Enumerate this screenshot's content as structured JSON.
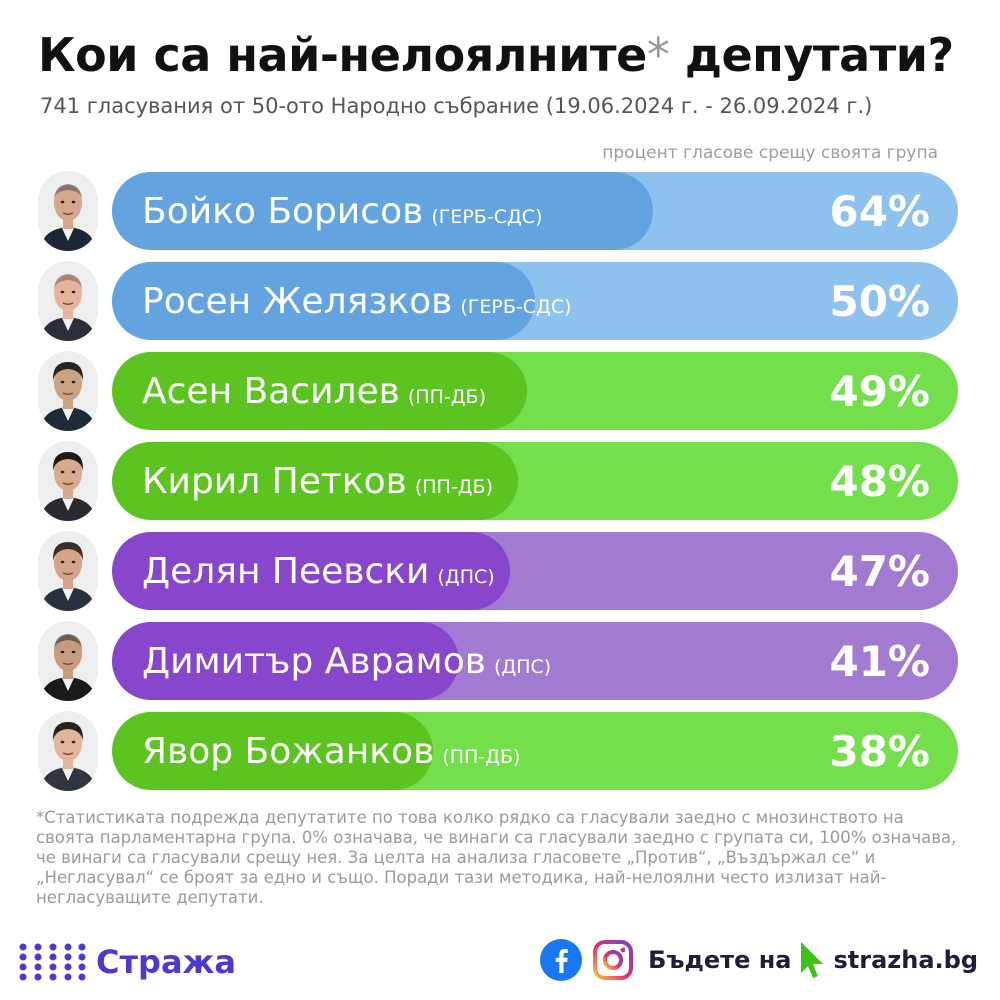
{
  "header": {
    "title": "Кои са най-нелоялните",
    "title_asterisk": "*",
    "title_end": "депутати?",
    "subtitle": "741 гласувания от 50-ото Народно събрание (19.06.2024 г. - 26.09.2024 г.)"
  },
  "chart_data": {
    "type": "bar",
    "orientation": "horizontal",
    "value_label": "процент гласове срещу своята група",
    "xlim": [
      0,
      100
    ],
    "unit": "%",
    "bars": [
      {
        "name": "Бойко Борисов",
        "party": "(ГЕРБ-СДС)",
        "value": 64,
        "label": "64%",
        "color": "#63a3e0",
        "track_color": "#8dc2ef"
      },
      {
        "name": "Росен Желязков",
        "party": "(ГЕРБ-СДС)",
        "value": 50,
        "label": "50%",
        "color": "#63a3e0",
        "track_color": "#8dc2ef"
      },
      {
        "name": "Асен Василев",
        "party": "(ПП-ДБ)",
        "value": 49,
        "label": "49%",
        "color": "#5cc421",
        "track_color": "#72df4b"
      },
      {
        "name": "Кирил Петков",
        "party": "(ПП-ДБ)",
        "value": 48,
        "label": "48%",
        "color": "#5cc421",
        "track_color": "#72df4b"
      },
      {
        "name": "Делян Пеевски",
        "party": "(ДПС)",
        "value": 47,
        "label": "47%",
        "color": "#8746cc",
        "track_color": "#a37ad1"
      },
      {
        "name": "Димитър Аврамов",
        "party": "(ДПС)",
        "value": 41,
        "label": "41%",
        "color": "#8746cc",
        "track_color": "#a37ad1"
      },
      {
        "name": "Явор Божанков",
        "party": "(ПП-ДБ)",
        "value": 38,
        "label": "38%",
        "color": "#5cc421",
        "track_color": "#72df4b"
      }
    ]
  },
  "footnote": "*Статистиката подрежда депутатите по това колко рядко са гласували заедно с мнозинството на своята парламентарна група. 0% означава, че винаги са гласували заедно с групата си, 100% означава, че винаги са гласували срещу нея. За целта на анализа гласовете „Против“, „Въздържал се“ и „Негласувал“ се броят за едно и също. Поради тази методика, най-нелоялни често излизат най-негласуващите депутати.",
  "footer": {
    "logo_text": "Стража",
    "cta": "Бъдете на",
    "site": "strazha.bg",
    "icons": [
      "dots-logo-icon",
      "facebook-icon",
      "instagram-icon",
      "cursor-icon"
    ]
  },
  "colors": {
    "gerb_fill": "#63a3e0",
    "gerb_track": "#8dc2ef",
    "ppdb_fill": "#5cc421",
    "ppdb_track": "#72df4b",
    "dps_fill": "#8746cc",
    "dps_track": "#a37ad1",
    "brand": "#4b3ad1"
  }
}
